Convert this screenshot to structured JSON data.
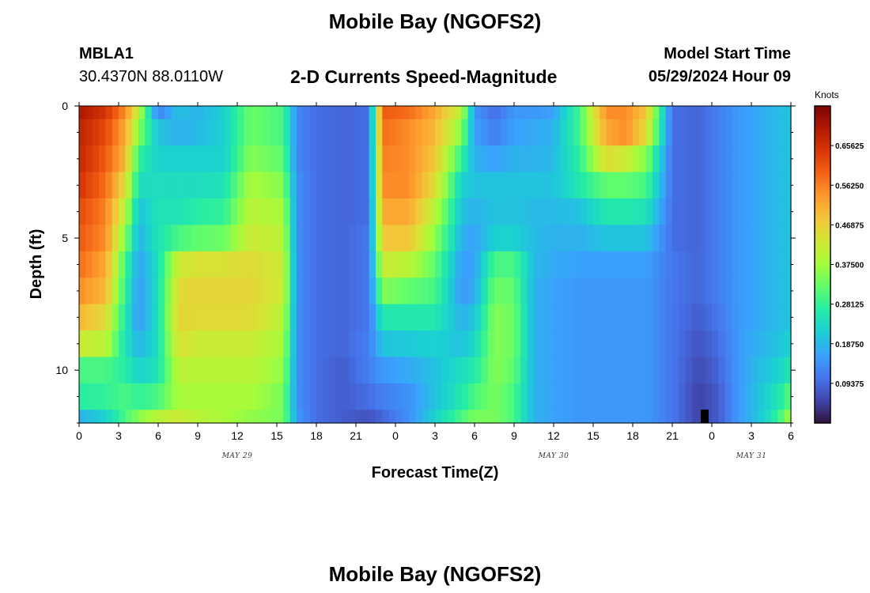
{
  "header": {
    "title": "Mobile Bay (NGOFS2)",
    "station_id": "MBLA1",
    "station_coords": "30.4370N  88.0110W",
    "plot_title": "2-D Currents Speed-Magnitude",
    "model_label": "Model Start Time",
    "model_time": "05/29/2024 Hour 09"
  },
  "footer": {
    "title_repeat": "Mobile Bay (NGOFS2)"
  },
  "chart_data": {
    "type": "heatmap",
    "title": "2-D Currents Speed-Magnitude",
    "xlabel": "Forecast Time(Z)",
    "ylabel": "Depth (ft)",
    "colorbar_label": "Knots",
    "x_tick_labels": [
      "0",
      "3",
      "6",
      "9",
      "12",
      "15",
      "18",
      "21",
      "0",
      "3",
      "6",
      "9",
      "12",
      "15",
      "18",
      "21",
      "0",
      "3",
      "6"
    ],
    "date_labels": [
      {
        "text": "MAY 29",
        "hour": 12
      },
      {
        "text": "MAY 30",
        "hour": 36
      },
      {
        "text": "MAY 31",
        "hour": 51
      }
    ],
    "y_tick_labels": [
      "0",
      "5",
      "10"
    ],
    "ylim": [
      0,
      12
    ],
    "xlim": [
      0,
      54
    ],
    "colorbar_ticks": [
      "0.65625",
      "0.56250",
      "0.46875",
      "0.37500",
      "0.28125",
      "0.18750",
      "0.09375"
    ],
    "colorbar_range": [
      0.0,
      0.75
    ],
    "colors": {
      "scale": [
        "#30123b",
        "#4145ab",
        "#4675ed",
        "#39a2fc",
        "#1bcfd4",
        "#24eca6",
        "#61fc6c",
        "#a4fc3b",
        "#d1e834",
        "#f3c63a",
        "#fe9b2d",
        "#f36315",
        "#d93806",
        "#b11901",
        "#7a0402"
      ]
    },
    "depth_levels_ft": [
      0,
      1,
      2,
      3,
      4,
      5,
      6,
      7,
      8,
      9,
      10,
      11,
      12
    ],
    "series": [
      {
        "x": [
          0,
          2,
          3.5,
          4.5,
          6,
          7.5,
          9,
          11,
          13,
          15.5,
          16.5,
          18,
          20,
          22,
          23,
          25,
          27,
          29,
          30,
          31.5,
          33,
          34.5,
          36,
          38,
          40,
          41.5,
          43,
          45,
          47,
          48.5,
          50,
          51.5,
          53,
          54
        ],
        "rows": [
          [
            0.7,
            0.65,
            0.55,
            0.4,
            0.12,
            0.2,
            0.18,
            0.22,
            0.33,
            0.3,
            0.13,
            0.1,
            0.09,
            0.1,
            0.6,
            0.58,
            0.52,
            0.4,
            0.15,
            0.1,
            0.15,
            0.15,
            0.16,
            0.3,
            0.55,
            0.55,
            0.48,
            0.1,
            0.09,
            0.12,
            0.15,
            0.17,
            0.19,
            0.2
          ],
          [
            0.68,
            0.62,
            0.52,
            0.35,
            0.2,
            0.18,
            0.19,
            0.22,
            0.33,
            0.3,
            0.13,
            0.1,
            0.09,
            0.1,
            0.58,
            0.55,
            0.5,
            0.35,
            0.16,
            0.12,
            0.16,
            0.17,
            0.18,
            0.3,
            0.52,
            0.55,
            0.45,
            0.1,
            0.09,
            0.12,
            0.15,
            0.17,
            0.19,
            0.2
          ],
          [
            0.67,
            0.6,
            0.5,
            0.28,
            0.22,
            0.22,
            0.22,
            0.22,
            0.35,
            0.32,
            0.13,
            0.1,
            0.09,
            0.1,
            0.56,
            0.55,
            0.48,
            0.28,
            0.18,
            0.16,
            0.18,
            0.18,
            0.19,
            0.28,
            0.45,
            0.42,
            0.35,
            0.1,
            0.09,
            0.12,
            0.15,
            0.17,
            0.19,
            0.2
          ],
          [
            0.65,
            0.58,
            0.45,
            0.24,
            0.24,
            0.24,
            0.24,
            0.25,
            0.38,
            0.35,
            0.14,
            0.1,
            0.09,
            0.1,
            0.55,
            0.55,
            0.45,
            0.22,
            0.2,
            0.2,
            0.2,
            0.2,
            0.2,
            0.26,
            0.32,
            0.32,
            0.3,
            0.1,
            0.09,
            0.12,
            0.15,
            0.17,
            0.19,
            0.2
          ],
          [
            0.62,
            0.56,
            0.4,
            0.2,
            0.25,
            0.25,
            0.27,
            0.28,
            0.4,
            0.38,
            0.14,
            0.1,
            0.09,
            0.1,
            0.52,
            0.52,
            0.4,
            0.2,
            0.18,
            0.2,
            0.2,
            0.19,
            0.19,
            0.2,
            0.26,
            0.26,
            0.25,
            0.1,
            0.09,
            0.12,
            0.15,
            0.17,
            0.19,
            0.2
          ],
          [
            0.6,
            0.55,
            0.35,
            0.18,
            0.25,
            0.3,
            0.32,
            0.33,
            0.42,
            0.4,
            0.14,
            0.1,
            0.09,
            0.11,
            0.48,
            0.48,
            0.36,
            0.18,
            0.16,
            0.22,
            0.22,
            0.19,
            0.18,
            0.18,
            0.2,
            0.2,
            0.2,
            0.1,
            0.09,
            0.12,
            0.15,
            0.17,
            0.19,
            0.2
          ],
          [
            0.58,
            0.52,
            0.3,
            0.16,
            0.24,
            0.42,
            0.44,
            0.44,
            0.45,
            0.42,
            0.14,
            0.1,
            0.09,
            0.11,
            0.42,
            0.4,
            0.32,
            0.16,
            0.16,
            0.3,
            0.3,
            0.19,
            0.17,
            0.16,
            0.16,
            0.16,
            0.16,
            0.11,
            0.09,
            0.12,
            0.15,
            0.17,
            0.19,
            0.2
          ],
          [
            0.55,
            0.5,
            0.28,
            0.15,
            0.24,
            0.45,
            0.46,
            0.46,
            0.46,
            0.42,
            0.14,
            0.1,
            0.09,
            0.11,
            0.35,
            0.32,
            0.3,
            0.15,
            0.17,
            0.33,
            0.32,
            0.18,
            0.16,
            0.15,
            0.15,
            0.15,
            0.15,
            0.11,
            0.09,
            0.12,
            0.15,
            0.17,
            0.19,
            0.2
          ],
          [
            0.5,
            0.45,
            0.26,
            0.15,
            0.24,
            0.46,
            0.45,
            0.45,
            0.45,
            0.4,
            0.14,
            0.1,
            0.09,
            0.11,
            0.26,
            0.26,
            0.26,
            0.18,
            0.2,
            0.35,
            0.33,
            0.18,
            0.16,
            0.15,
            0.15,
            0.15,
            0.15,
            0.11,
            0.08,
            0.11,
            0.15,
            0.17,
            0.19,
            0.2
          ],
          [
            0.42,
            0.4,
            0.25,
            0.18,
            0.24,
            0.44,
            0.42,
            0.42,
            0.42,
            0.38,
            0.14,
            0.1,
            0.09,
            0.12,
            0.2,
            0.21,
            0.22,
            0.2,
            0.23,
            0.35,
            0.33,
            0.18,
            0.16,
            0.15,
            0.15,
            0.15,
            0.15,
            0.11,
            0.07,
            0.1,
            0.15,
            0.18,
            0.2,
            0.22
          ],
          [
            0.3,
            0.3,
            0.27,
            0.22,
            0.25,
            0.4,
            0.4,
            0.4,
            0.4,
            0.36,
            0.14,
            0.1,
            0.08,
            0.12,
            0.15,
            0.17,
            0.2,
            0.24,
            0.26,
            0.35,
            0.32,
            0.18,
            0.16,
            0.15,
            0.15,
            0.15,
            0.15,
            0.11,
            0.06,
            0.09,
            0.15,
            0.19,
            0.22,
            0.26
          ],
          [
            0.27,
            0.28,
            0.3,
            0.28,
            0.3,
            0.38,
            0.38,
            0.38,
            0.38,
            0.34,
            0.14,
            0.1,
            0.08,
            0.1,
            0.12,
            0.14,
            0.2,
            0.26,
            0.3,
            0.34,
            0.3,
            0.18,
            0.16,
            0.15,
            0.15,
            0.15,
            0.15,
            0.11,
            0.05,
            0.08,
            0.15,
            0.2,
            0.25,
            0.32
          ],
          [
            0.18,
            0.22,
            0.3,
            0.35,
            0.4,
            0.42,
            0.4,
            0.38,
            0.36,
            0.34,
            0.15,
            0.1,
            0.08,
            0.07,
            0.09,
            0.14,
            0.22,
            0.3,
            0.34,
            0.34,
            0.3,
            0.18,
            0.16,
            0.15,
            0.15,
            0.15,
            0.15,
            0.11,
            0.05,
            0.08,
            0.15,
            0.2,
            0.28,
            0.38
          ]
        ]
      }
    ]
  }
}
